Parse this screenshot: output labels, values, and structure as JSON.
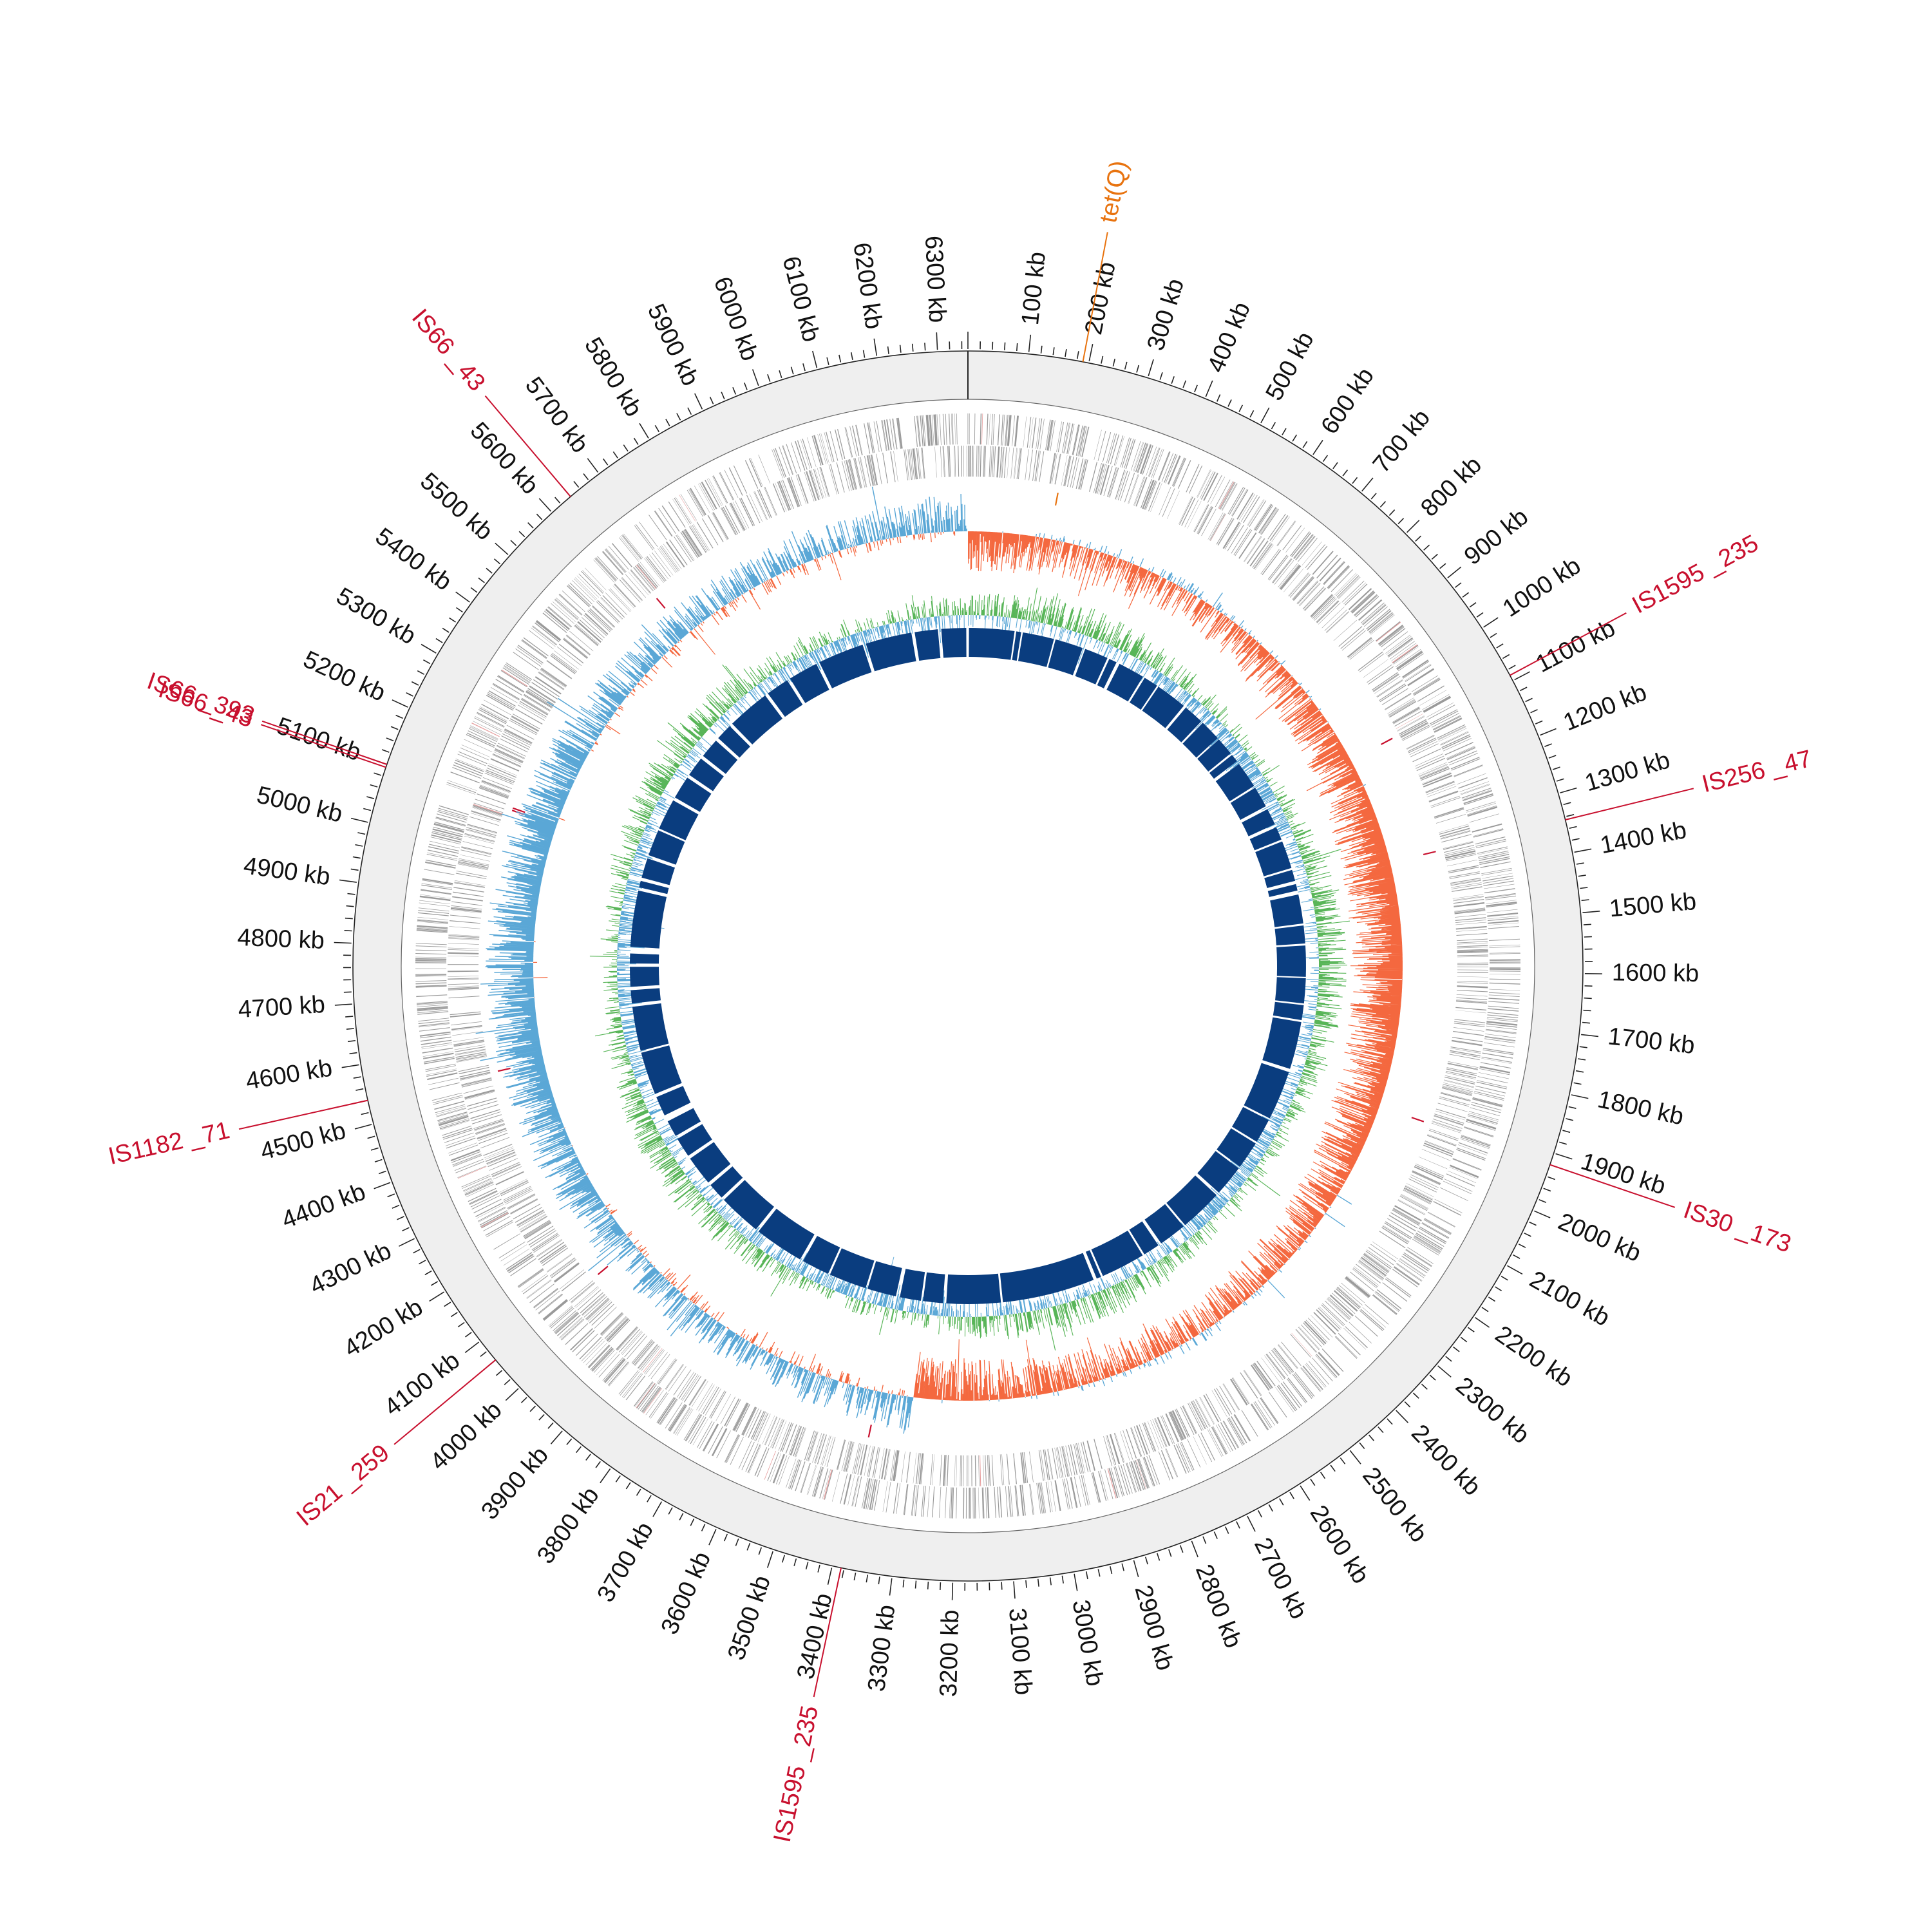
{
  "genome": {
    "length_kb": 6350,
    "tick_labels": [
      {
        "kb": 100,
        "label": "100 kb"
      },
      {
        "kb": 200,
        "label": "200 kb"
      },
      {
        "kb": 300,
        "label": "300 kb"
      },
      {
        "kb": 400,
        "label": "400 kb"
      },
      {
        "kb": 500,
        "label": "500 kb"
      },
      {
        "kb": 600,
        "label": "600 kb"
      },
      {
        "kb": 700,
        "label": "700 kb"
      },
      {
        "kb": 800,
        "label": "800 kb"
      },
      {
        "kb": 900,
        "label": "900 kb"
      },
      {
        "kb": 1000,
        "label": "1000 kb"
      },
      {
        "kb": 1100,
        "label": "1100 kb"
      },
      {
        "kb": 1200,
        "label": "1200 kb"
      },
      {
        "kb": 1300,
        "label": "1300 kb"
      },
      {
        "kb": 1400,
        "label": "1400 kb"
      },
      {
        "kb": 1500,
        "label": "1500 kb"
      },
      {
        "kb": 1600,
        "label": "1600 kb"
      },
      {
        "kb": 1700,
        "label": "1700 kb"
      },
      {
        "kb": 1800,
        "label": "1800 kb"
      },
      {
        "kb": 1900,
        "label": "1900 kb"
      },
      {
        "kb": 2000,
        "label": "2000 kb"
      },
      {
        "kb": 2100,
        "label": "2100 kb"
      },
      {
        "kb": 2200,
        "label": "2200 kb"
      },
      {
        "kb": 2300,
        "label": "2300 kb"
      },
      {
        "kb": 2400,
        "label": "2400 kb"
      },
      {
        "kb": 2500,
        "label": "2500 kb"
      },
      {
        "kb": 2600,
        "label": "2600 kb"
      },
      {
        "kb": 2700,
        "label": "2700 kb"
      },
      {
        "kb": 2800,
        "label": "2800 kb"
      },
      {
        "kb": 2900,
        "label": "2900 kb"
      },
      {
        "kb": 3000,
        "label": "3000 kb"
      },
      {
        "kb": 3100,
        "label": "3100 kb"
      },
      {
        "kb": 3200,
        "label": "3200 kb"
      },
      {
        "kb": 3300,
        "label": "3300 kb"
      },
      {
        "kb": 3400,
        "label": "3400 kb"
      },
      {
        "kb": 3500,
        "label": "3500 kb"
      },
      {
        "kb": 3600,
        "label": "3600 kb"
      },
      {
        "kb": 3700,
        "label": "3700 kb"
      },
      {
        "kb": 3800,
        "label": "3800 kb"
      },
      {
        "kb": 3900,
        "label": "3900 kb"
      },
      {
        "kb": 4000,
        "label": "4000 kb"
      },
      {
        "kb": 4100,
        "label": "4100 kb"
      },
      {
        "kb": 4200,
        "label": "4200 kb"
      },
      {
        "kb": 4300,
        "label": "4300 kb"
      },
      {
        "kb": 4400,
        "label": "4400 kb"
      },
      {
        "kb": 4500,
        "label": "4500 kb"
      },
      {
        "kb": 4600,
        "label": "4600 kb"
      },
      {
        "kb": 4700,
        "label": "4700 kb"
      },
      {
        "kb": 4800,
        "label": "4800 kb"
      },
      {
        "kb": 4900,
        "label": "4900 kb"
      },
      {
        "kb": 5000,
        "label": "5000 kb"
      },
      {
        "kb": 5100,
        "label": "5100 kb"
      },
      {
        "kb": 5200,
        "label": "5200 kb"
      },
      {
        "kb": 5300,
        "label": "5300 kb"
      },
      {
        "kb": 5400,
        "label": "5400 kb"
      },
      {
        "kb": 5500,
        "label": "5500 kb"
      },
      {
        "kb": 5600,
        "label": "5600 kb"
      },
      {
        "kb": 5700,
        "label": "5700 kb"
      },
      {
        "kb": 5800,
        "label": "5800 kb"
      },
      {
        "kb": 5900,
        "label": "5900 kb"
      },
      {
        "kb": 6000,
        "label": "6000 kb"
      },
      {
        "kb": 6100,
        "label": "6100 kb"
      },
      {
        "kb": 6200,
        "label": "6200 kb"
      },
      {
        "kb": 6300,
        "label": "6300 kb"
      }
    ]
  },
  "annotations": [
    {
      "label": "tet(Q)",
      "kb": 190,
      "color": "#e8730f"
    },
    {
      "label": "IS1595 _235",
      "kb": 1090,
      "color": "#c8102e"
    },
    {
      "label": "IS256 _47",
      "kb": 1345,
      "color": "#c8102e"
    },
    {
      "label": "IS30 _173",
      "kb": 1920,
      "color": "#c8102e"
    },
    {
      "label": "IS1595 _235",
      "kb": 3385,
      "color": "#c8102e"
    },
    {
      "label": "IS21 _259",
      "kb": 4060,
      "color": "#c8102e"
    },
    {
      "label": "IS1182 _71",
      "kb": 4540,
      "color": "#c8102e"
    },
    {
      "label": "IS66 _43",
      "kb": 5095,
      "color": "#c8102e"
    },
    {
      "label": "IS66 _393",
      "kb": 5100,
      "color": "#c8102e"
    },
    {
      "label": "IS66 _43",
      "kb": 5640,
      "color": "#c8102e"
    }
  ],
  "tracks": {
    "ring_fill": "#efefef",
    "cds_color": "#9a9a9a",
    "cds_highlight": "#e7a0a0",
    "gc_skew_positive": "#5aa7d6",
    "gc_skew_negative": "#f4683f",
    "gc_content_positive": "#58b558",
    "gc_content_negative": "#5aa7d6",
    "blocks_color": "#0a3d7f",
    "blocks": [
      [
        3,
        140
      ],
      [
        145,
        160
      ],
      [
        165,
        260
      ],
      [
        265,
        350
      ],
      [
        358,
        430
      ],
      [
        436,
        460
      ],
      [
        470,
        550
      ],
      [
        556,
        600
      ],
      [
        605,
        700
      ],
      [
        708,
        770
      ],
      [
        776,
        840
      ],
      [
        845,
        900
      ],
      [
        906,
        930
      ],
      [
        940,
        1020
      ],
      [
        1026,
        1090
      ],
      [
        1100,
        1150
      ],
      [
        1160,
        1200
      ],
      [
        1206,
        1290
      ],
      [
        1296,
        1330
      ],
      [
        1340,
        1360
      ],
      [
        1372,
        1460
      ],
      [
        1466,
        1520
      ],
      [
        1526,
        1620
      ],
      [
        1624,
        1700
      ],
      [
        1705,
        1750
      ],
      [
        1756,
        1900
      ],
      [
        1910,
        2060
      ],
      [
        2066,
        2140
      ],
      [
        2146,
        2230
      ],
      [
        2236,
        2330
      ],
      [
        2340,
        2470
      ],
      [
        2476,
        2560
      ],
      [
        2570,
        2620
      ],
      [
        2626,
        2760
      ],
      [
        2766,
        2780
      ],
      [
        2790,
        3070
      ],
      [
        3076,
        3240
      ],
      [
        3250,
        3310
      ],
      [
        3316,
        3380
      ],
      [
        3392,
        3480
      ],
      [
        3486,
        3600
      ],
      [
        3606,
        3690
      ],
      [
        3700,
        3850
      ],
      [
        3860,
        3990
      ],
      [
        4000,
        4050
      ],
      [
        4060,
        4150
      ],
      [
        4160,
        4220
      ],
      [
        4230,
        4280
      ],
      [
        4300,
        4360
      ],
      [
        4370,
        4500
      ],
      [
        4506,
        4640
      ],
      [
        4650,
        4690
      ],
      [
        4700,
        4760
      ],
      [
        4770,
        4800
      ],
      [
        4820,
        4990
      ],
      [
        5000,
        5020
      ],
      [
        5030,
        5090
      ],
      [
        5100,
        5180
      ],
      [
        5186,
        5280
      ],
      [
        5290,
        5360
      ],
      [
        5370,
        5430
      ],
      [
        5440,
        5500
      ],
      [
        5510,
        5560
      ],
      [
        5570,
        5700
      ],
      [
        5710,
        5780
      ],
      [
        5790,
        5880
      ],
      [
        5890,
        6030
      ],
      [
        6040,
        6180
      ],
      [
        6190,
        6260
      ],
      [
        6270,
        6345
      ]
    ]
  }
}
